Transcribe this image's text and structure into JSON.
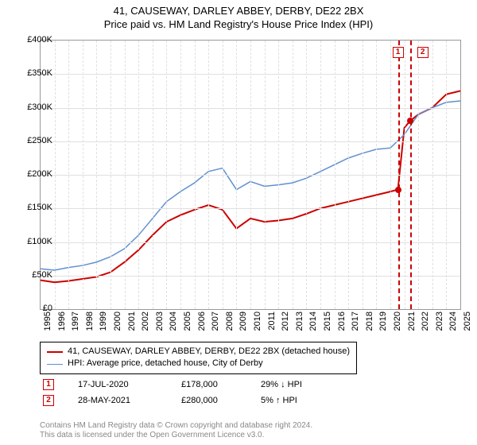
{
  "title": "41, CAUSEWAY, DARLEY ABBEY, DERBY, DE22 2BX",
  "subtitle": "Price paid vs. HM Land Registry's House Price Index (HPI)",
  "chart": {
    "type": "line",
    "background_color": "#ffffff",
    "grid_color": "#e0e0e0",
    "axis_color": "#999999",
    "xlim": [
      1995,
      2025
    ],
    "ylim": [
      0,
      400000
    ],
    "ytick_step": 50000,
    "y_prefix": "£",
    "y_suffix_k": "K",
    "xticks": [
      1995,
      1996,
      1997,
      1998,
      1999,
      2000,
      2001,
      2002,
      2003,
      2004,
      2005,
      2006,
      2007,
      2008,
      2009,
      2010,
      2011,
      2012,
      2013,
      2014,
      2015,
      2016,
      2017,
      2018,
      2019,
      2020,
      2021,
      2022,
      2023,
      2024,
      2025
    ],
    "series": [
      {
        "name": "41, CAUSEWAY, DARLEY ABBEY, DERBY, DE22 2BX (detached house)",
        "color": "#cc0000",
        "line_width": 2,
        "data": [
          [
            1995,
            43000
          ],
          [
            1996,
            40000
          ],
          [
            1997,
            42000
          ],
          [
            1998,
            45000
          ],
          [
            1999,
            48000
          ],
          [
            2000,
            55000
          ],
          [
            2001,
            70000
          ],
          [
            2002,
            88000
          ],
          [
            2003,
            110000
          ],
          [
            2004,
            130000
          ],
          [
            2005,
            140000
          ],
          [
            2006,
            148000
          ],
          [
            2007,
            155000
          ],
          [
            2008,
            148000
          ],
          [
            2009,
            120000
          ],
          [
            2010,
            135000
          ],
          [
            2011,
            130000
          ],
          [
            2012,
            132000
          ],
          [
            2013,
            135000
          ],
          [
            2014,
            142000
          ],
          [
            2015,
            150000
          ],
          [
            2016,
            155000
          ],
          [
            2017,
            160000
          ],
          [
            2018,
            165000
          ],
          [
            2019,
            170000
          ],
          [
            2020,
            175000
          ],
          [
            2020.54,
            178000
          ],
          [
            2021,
            270000
          ],
          [
            2021.4,
            280000
          ],
          [
            2022,
            290000
          ],
          [
            2023,
            300000
          ],
          [
            2024,
            320000
          ],
          [
            2025,
            325000
          ]
        ]
      },
      {
        "name": "HPI: Average price, detached house, City of Derby",
        "color": "#6090d0",
        "line_width": 1.5,
        "data": [
          [
            1995,
            60000
          ],
          [
            1996,
            58000
          ],
          [
            1997,
            62000
          ],
          [
            1998,
            65000
          ],
          [
            1999,
            70000
          ],
          [
            2000,
            78000
          ],
          [
            2001,
            90000
          ],
          [
            2002,
            110000
          ],
          [
            2003,
            135000
          ],
          [
            2004,
            160000
          ],
          [
            2005,
            175000
          ],
          [
            2006,
            188000
          ],
          [
            2007,
            205000
          ],
          [
            2008,
            210000
          ],
          [
            2009,
            178000
          ],
          [
            2010,
            190000
          ],
          [
            2011,
            183000
          ],
          [
            2012,
            185000
          ],
          [
            2013,
            188000
          ],
          [
            2014,
            195000
          ],
          [
            2015,
            205000
          ],
          [
            2016,
            215000
          ],
          [
            2017,
            225000
          ],
          [
            2018,
            232000
          ],
          [
            2019,
            238000
          ],
          [
            2020,
            240000
          ],
          [
            2021,
            260000
          ],
          [
            2022,
            290000
          ],
          [
            2023,
            300000
          ],
          [
            2024,
            308000
          ],
          [
            2025,
            310000
          ]
        ]
      }
    ],
    "sale_markers": [
      {
        "index": 1,
        "x": 2020.54,
        "y": 178000,
        "date": "17-JUL-2020",
        "price": "£178,000",
        "delta": "29% ↓ HPI",
        "color": "#cc0000"
      },
      {
        "index": 2,
        "x": 2021.4,
        "y": 280000,
        "date": "28-MAY-2021",
        "price": "£280,000",
        "delta": "5% ↑ HPI",
        "color": "#cc0000"
      }
    ],
    "title_fontsize": 13,
    "label_fontsize": 11
  },
  "footer_line1": "Contains HM Land Registry data © Crown copyright and database right 2024.",
  "footer_line2": "This data is licensed under the Open Government Licence v3.0."
}
